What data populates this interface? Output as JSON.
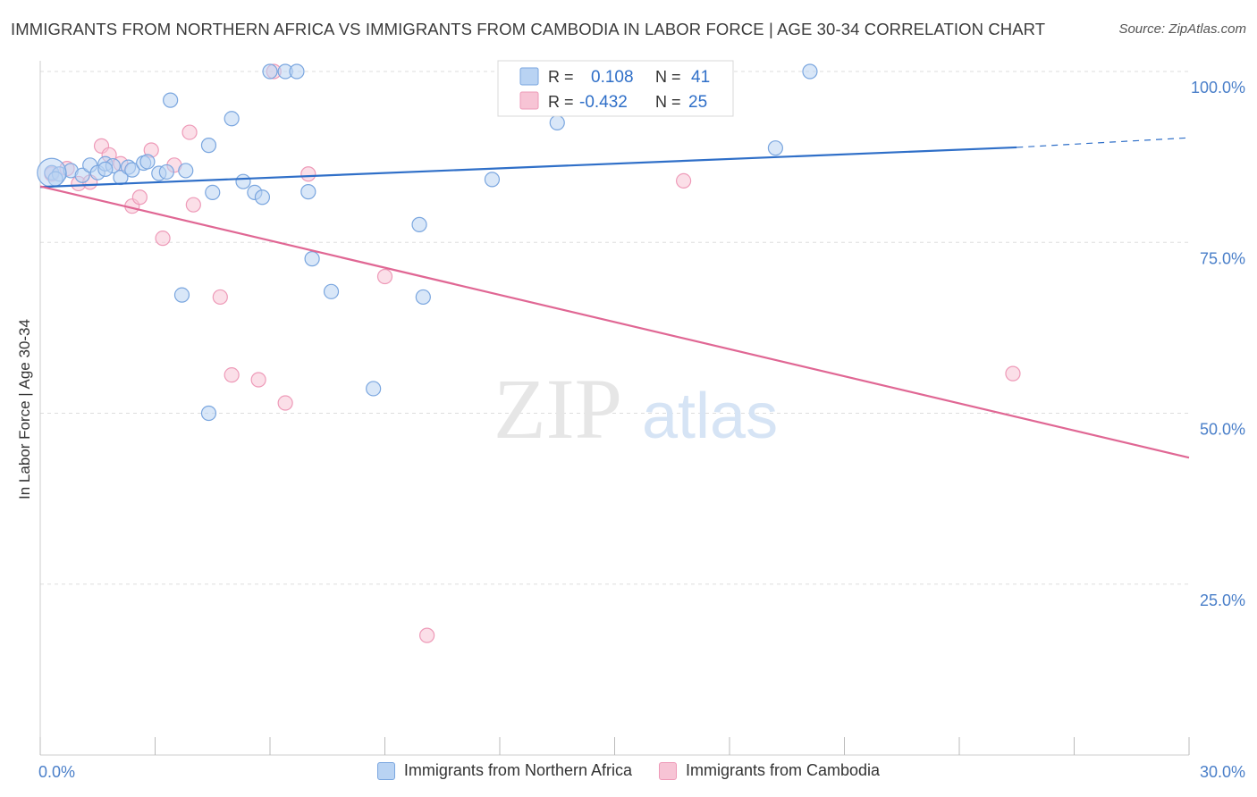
{
  "title": "IMMIGRANTS FROM NORTHERN AFRICA VS IMMIGRANTS FROM CAMBODIA IN LABOR FORCE | AGE 30-34 CORRELATION CHART",
  "source": "Source: ZipAtlas.com",
  "watermark": {
    "zip": "ZIP",
    "atlas": "atlas"
  },
  "colors": {
    "blue": "#2f6fc8",
    "blue_fill": "#b9d3f3",
    "blue_stroke": "#7aa6df",
    "pink": "#e06794",
    "pink_fill": "#f7c4d5",
    "pink_stroke": "#ee9ab8",
    "grid": "#dddddd",
    "tick_text": "#4a7fc9"
  },
  "stats_legend": [
    {
      "r_label": "R =",
      "r_value": "0.108",
      "n_label": "N =",
      "n_value": "41"
    },
    {
      "r_label": "R =",
      "r_value": "-0.432",
      "n_label": "N =",
      "n_value": "25"
    }
  ],
  "chart_data": {
    "type": "scatter",
    "title": "IMMIGRANTS FROM NORTHERN AFRICA VS IMMIGRANTS FROM CAMBODIA IN LABOR FORCE | AGE 30-34 CORRELATION CHART",
    "xlabel": "",
    "ylabel": "In Labor Force | Age 30-34",
    "xlim": [
      0,
      30
    ],
    "ylim": [
      0,
      100
    ],
    "x_tick_labels": [
      "0.0%",
      "30.0%"
    ],
    "y_tick_labels": [
      "25.0%",
      "50.0%",
      "75.0%",
      "100.0%"
    ],
    "y_tick_values": [
      25,
      50,
      75,
      100
    ],
    "legend_position": "bottom",
    "grid": true,
    "series": [
      {
        "name": "Immigrants from Northern Africa",
        "color": "#2f6fc8",
        "trend": {
          "x0": 0,
          "y0": 83.1,
          "x1": 25.5,
          "y1": 88.9,
          "dashed_to_x": 30,
          "dashed_to_y": 90.3
        },
        "points": [
          [
            0.3,
            85.2
          ],
          [
            0.5,
            85.0
          ],
          [
            0.8,
            85.5
          ],
          [
            1.1,
            84.8
          ],
          [
            1.3,
            86.3
          ],
          [
            1.5,
            85.2
          ],
          [
            1.7,
            86.5
          ],
          [
            1.9,
            86.2
          ],
          [
            2.1,
            84.5
          ],
          [
            2.3,
            86.0
          ],
          [
            2.4,
            85.6
          ],
          [
            2.7,
            86.6
          ],
          [
            2.8,
            86.8
          ],
          [
            3.1,
            85.1
          ],
          [
            3.3,
            85.3
          ],
          [
            3.4,
            95.8
          ],
          [
            3.8,
            85.5
          ],
          [
            4.4,
            89.2
          ],
          [
            4.5,
            82.3
          ],
          [
            5.0,
            93.1
          ],
          [
            5.3,
            83.9
          ],
          [
            5.6,
            82.3
          ],
          [
            5.8,
            81.6
          ],
          [
            6.0,
            100.0
          ],
          [
            6.4,
            100.0
          ],
          [
            6.7,
            100.0
          ],
          [
            7.0,
            82.4
          ],
          [
            7.1,
            72.6
          ],
          [
            7.6,
            67.8
          ],
          [
            3.7,
            67.3
          ],
          [
            4.4,
            50.0
          ],
          [
            8.7,
            53.6
          ],
          [
            9.9,
            77.6
          ],
          [
            10.0,
            67.0
          ],
          [
            11.8,
            84.2
          ],
          [
            13.5,
            92.5
          ],
          [
            14.6,
            100.0
          ],
          [
            19.2,
            88.8
          ],
          [
            20.1,
            100.0
          ],
          [
            0.4,
            84.3
          ],
          [
            1.7,
            85.7
          ]
        ]
      },
      {
        "name": "Immigrants from Cambodia",
        "color": "#e06794",
        "trend": {
          "x0": 0,
          "y0": 83.2,
          "x1": 30,
          "y1": 43.5
        },
        "points": [
          [
            0.3,
            85.0
          ],
          [
            0.7,
            85.8
          ],
          [
            1.0,
            83.6
          ],
          [
            1.3,
            83.8
          ],
          [
            1.6,
            89.1
          ],
          [
            1.8,
            87.8
          ],
          [
            2.1,
            86.5
          ],
          [
            2.4,
            80.3
          ],
          [
            2.6,
            81.6
          ],
          [
            2.9,
            88.5
          ],
          [
            3.2,
            75.6
          ],
          [
            3.5,
            86.3
          ],
          [
            3.9,
            91.1
          ],
          [
            4.0,
            80.5
          ],
          [
            4.7,
            67.0
          ],
          [
            5.0,
            55.6
          ],
          [
            5.7,
            54.9
          ],
          [
            6.1,
            100.0
          ],
          [
            6.4,
            51.5
          ],
          [
            7.0,
            85.0
          ],
          [
            9.0,
            70.0
          ],
          [
            10.1,
            17.5
          ],
          [
            14.2,
            100.0
          ],
          [
            16.8,
            84.0
          ],
          [
            25.4,
            55.8
          ]
        ]
      }
    ]
  }
}
